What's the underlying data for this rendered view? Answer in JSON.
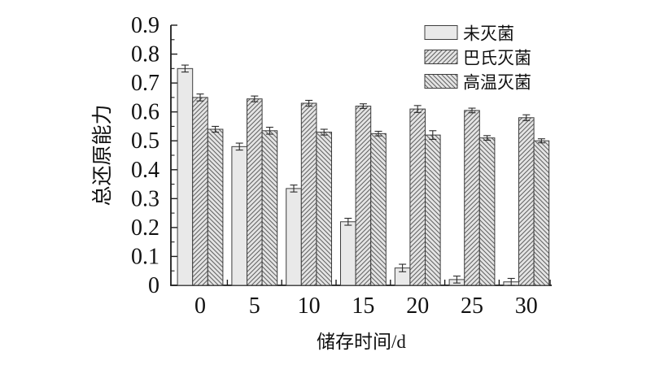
{
  "chart_data": {
    "type": "bar",
    "title": "",
    "xlabel": "储存时间/d",
    "ylabel": "总还原能力",
    "categories": [
      "0",
      "5",
      "10",
      "15",
      "20",
      "25",
      "30"
    ],
    "series": [
      {
        "name": "未灭菌",
        "hatch": "none",
        "values": [
          0.75,
          0.48,
          0.335,
          0.22,
          0.06,
          0.02,
          0.012
        ],
        "errors": [
          0.012,
          0.012,
          0.012,
          0.012,
          0.013,
          0.012,
          0.012
        ]
      },
      {
        "name": "巴氏灭菌",
        "hatch": "forward",
        "values": [
          0.65,
          0.645,
          0.63,
          0.62,
          0.61,
          0.605,
          0.58
        ],
        "errors": [
          0.012,
          0.01,
          0.01,
          0.008,
          0.012,
          0.008,
          0.01
        ]
      },
      {
        "name": "高温灭菌",
        "hatch": "backward",
        "values": [
          0.54,
          0.535,
          0.53,
          0.525,
          0.52,
          0.51,
          0.5
        ],
        "errors": [
          0.01,
          0.012,
          0.01,
          0.008,
          0.015,
          0.008,
          0.007
        ]
      }
    ],
    "ylim": [
      0,
      0.9
    ],
    "ytick_step": 0.1,
    "yminor_step": 0.05,
    "grid": false,
    "legend_position": "top-right"
  },
  "colors": {
    "background": "#ffffff",
    "axis": "#1c1c1c",
    "text": "#111111",
    "bar_border": "#3d3d3d",
    "bar_fill_solid": "#e9e9e9",
    "bar_fill_hatched": "#e4e4e4",
    "hatch_line": "#606060",
    "error_bar": "#2b2b2b"
  }
}
